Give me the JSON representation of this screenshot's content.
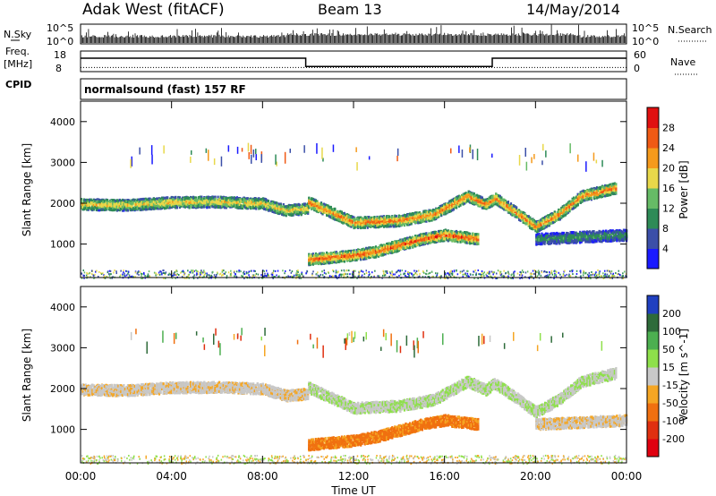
{
  "header": {
    "station": "Adak West (fitACF)",
    "beam": "Beam 13",
    "date": "14/May/2014"
  },
  "noise_panel": {
    "left_label": "N.Sky",
    "right_label": "N.Search",
    "left_ticks": [
      "10^5",
      "10^0"
    ],
    "right_ticks": [
      "10^5",
      "10^0"
    ]
  },
  "freq_panel": {
    "left_label_line1": "Freq.",
    "left_label_line2": "[MHz]",
    "right_label": "Nave",
    "left_ticks": [
      "18",
      "8"
    ],
    "right_ticks": [
      "60",
      "0"
    ]
  },
  "cpid_panel": {
    "label": "CPID",
    "program": "normalsound (fast) 157 RF"
  },
  "axes": {
    "ylabel": "Slant Range [km]",
    "xlabel": "Time UT",
    "x_ticks": [
      "00:00",
      "04:00",
      "08:00",
      "12:00",
      "16:00",
      "20:00",
      "00:00"
    ],
    "y_ticks": [
      "1000",
      "2000",
      "3000",
      "4000"
    ]
  },
  "power_colorbar": {
    "label": "Power [dB]",
    "ticks": [
      "4",
      "8",
      "12",
      "16",
      "20",
      "24",
      "28"
    ],
    "colors": [
      "#1a1aff",
      "#3b4fa8",
      "#2e8b57",
      "#66bb66",
      "#e8d84a",
      "#f59a1c",
      "#f05a14",
      "#e01010"
    ]
  },
  "velocity_colorbar": {
    "label": "Velocity [m s^-1]",
    "ticks": [
      "200",
      "100",
      "50",
      "15",
      "-15",
      "-50",
      "-100",
      "-200"
    ],
    "colors": [
      "#2040c0",
      "#2e6b3a",
      "#4caf50",
      "#8ee04a",
      "#c8c8c8",
      "#f5a623",
      "#f07010",
      "#e03010",
      "#e00010"
    ]
  },
  "chart_data": {
    "type": "heatmap",
    "x_range_hours": [
      0,
      24
    ],
    "y_range_km": [
      180,
      4500
    ],
    "power_range_db": [
      0,
      32
    ],
    "velocity_range_ms": [
      -250,
      250
    ],
    "freq_mhz": [
      {
        "from": 0,
        "to": 9.9,
        "value": 14.5
      },
      {
        "from": 9.9,
        "to": 18.1,
        "value": 10.5
      },
      {
        "from": 18.1,
        "to": 24,
        "value": 14.5
      }
    ],
    "nave": [
      {
        "from": 0,
        "to": 24,
        "value": 12
      }
    ],
    "scatter_bands": [
      {
        "name": "upper band",
        "points": [
          [
            0,
            2000
          ],
          [
            2,
            1980
          ],
          [
            4,
            2050
          ],
          [
            6,
            2060
          ],
          [
            8,
            2020
          ],
          [
            9,
            1850
          ],
          [
            10,
            1900
          ]
        ],
        "power": 18,
        "velocity": -5
      },
      {
        "name": "upper band",
        "points": [
          [
            10,
            2050
          ],
          [
            12,
            1550
          ],
          [
            14,
            1600
          ],
          [
            15.5,
            1750
          ],
          [
            16.5,
            2050
          ],
          [
            17,
            2200
          ],
          [
            17.8,
            2000
          ],
          [
            18.2,
            2150
          ],
          [
            19,
            1850
          ],
          [
            20,
            1450
          ],
          [
            21,
            1750
          ],
          [
            22,
            2200
          ],
          [
            23.5,
            2400
          ]
        ],
        "power": 22,
        "velocity": 10
      },
      {
        "name": "lower band",
        "points": [
          [
            10,
            650
          ],
          [
            11,
            700
          ],
          [
            12,
            750
          ],
          [
            13,
            850
          ],
          [
            14,
            1000
          ],
          [
            15,
            1150
          ],
          [
            16,
            1250
          ],
          [
            17.5,
            1150
          ]
        ],
        "power": 24,
        "velocity": -60
      },
      {
        "name": "lower band",
        "points": [
          [
            20,
            1150
          ],
          [
            22,
            1200
          ],
          [
            24,
            1250
          ]
        ],
        "power": 10,
        "velocity": -5
      }
    ]
  }
}
